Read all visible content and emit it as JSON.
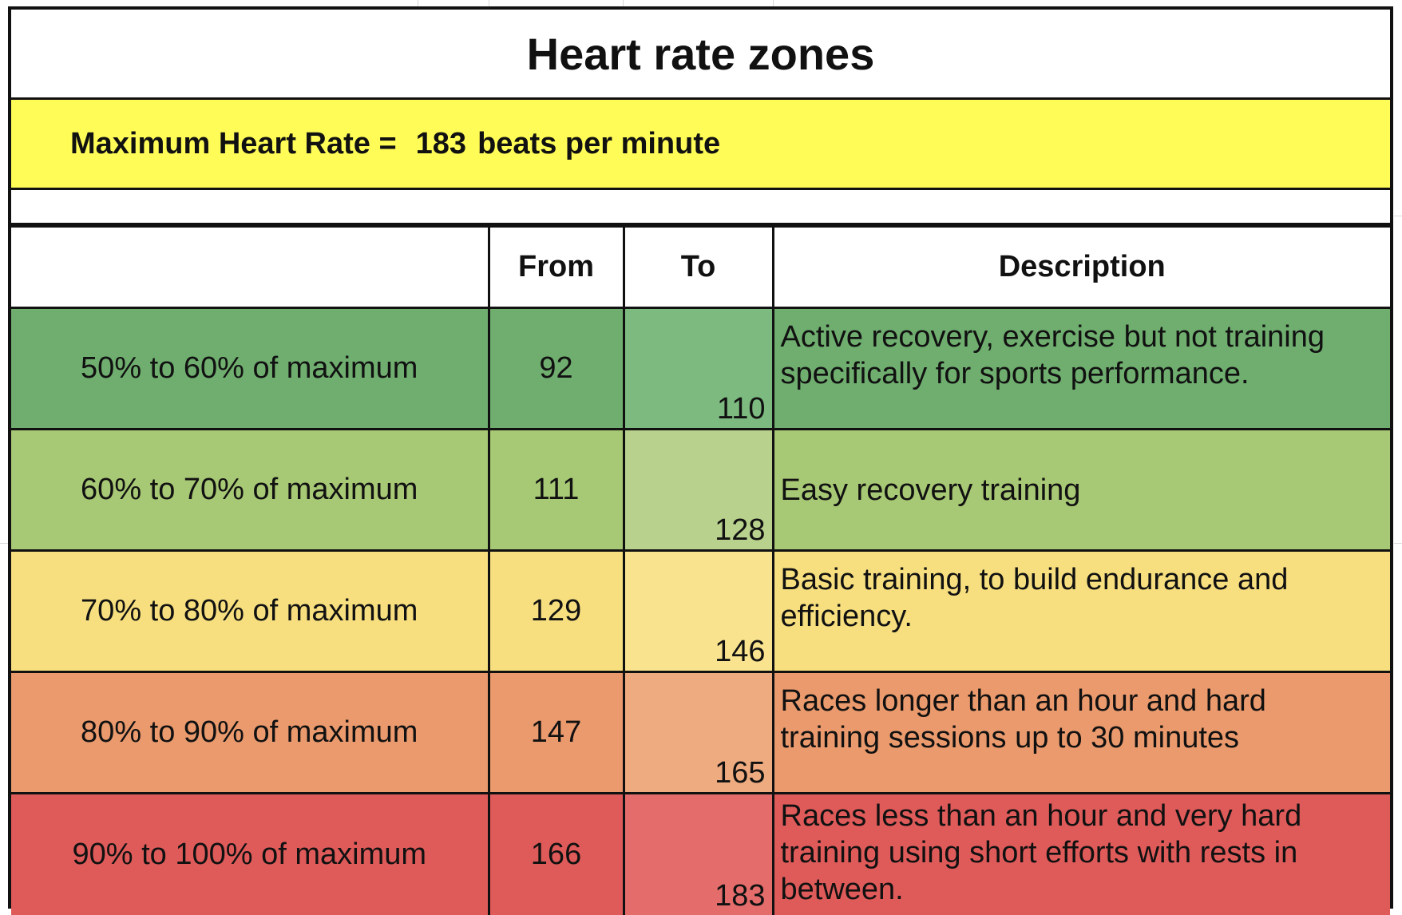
{
  "title": "Heart rate zones",
  "max_hr": {
    "label": "Maximum Heart Rate =",
    "value": "183",
    "unit": "beats per minute"
  },
  "table": {
    "headers": [
      "",
      "From",
      "To",
      "Description"
    ],
    "rows": [
      {
        "zone": "50% to 60% of maximum",
        "from": "92",
        "to": "110",
        "description": "Active recovery, exercise but not training specifically for sports performance.",
        "color": "#6fae6f",
        "to_color": "#7cba80"
      },
      {
        "zone": "60% to 70% of maximum",
        "from": "111",
        "to": "128",
        "description": "Easy recovery training",
        "color": "#a7c874",
        "to_color": "#b8d28d"
      },
      {
        "zone": "70% to 80% of maximum",
        "from": "129",
        "to": "146",
        "description": "Basic training, to build endurance and efficiency.",
        "color": "#f7df7f",
        "to_color": "#f9e38e"
      },
      {
        "zone": "80% to 90% of maximum",
        "from": "147",
        "to": "165",
        "description": "Races longer than an hour and hard training sessions up to 30 minutes",
        "color": "#ea9a6d",
        "to_color": "#efab80"
      },
      {
        "zone": "90% to 100% of maximum",
        "from": "166",
        "to": "183",
        "description": "Races less than an hour and very hard training using short efforts with rests in between.",
        "color": "#df5b5a",
        "to_color": "#e46d6c"
      }
    ]
  }
}
